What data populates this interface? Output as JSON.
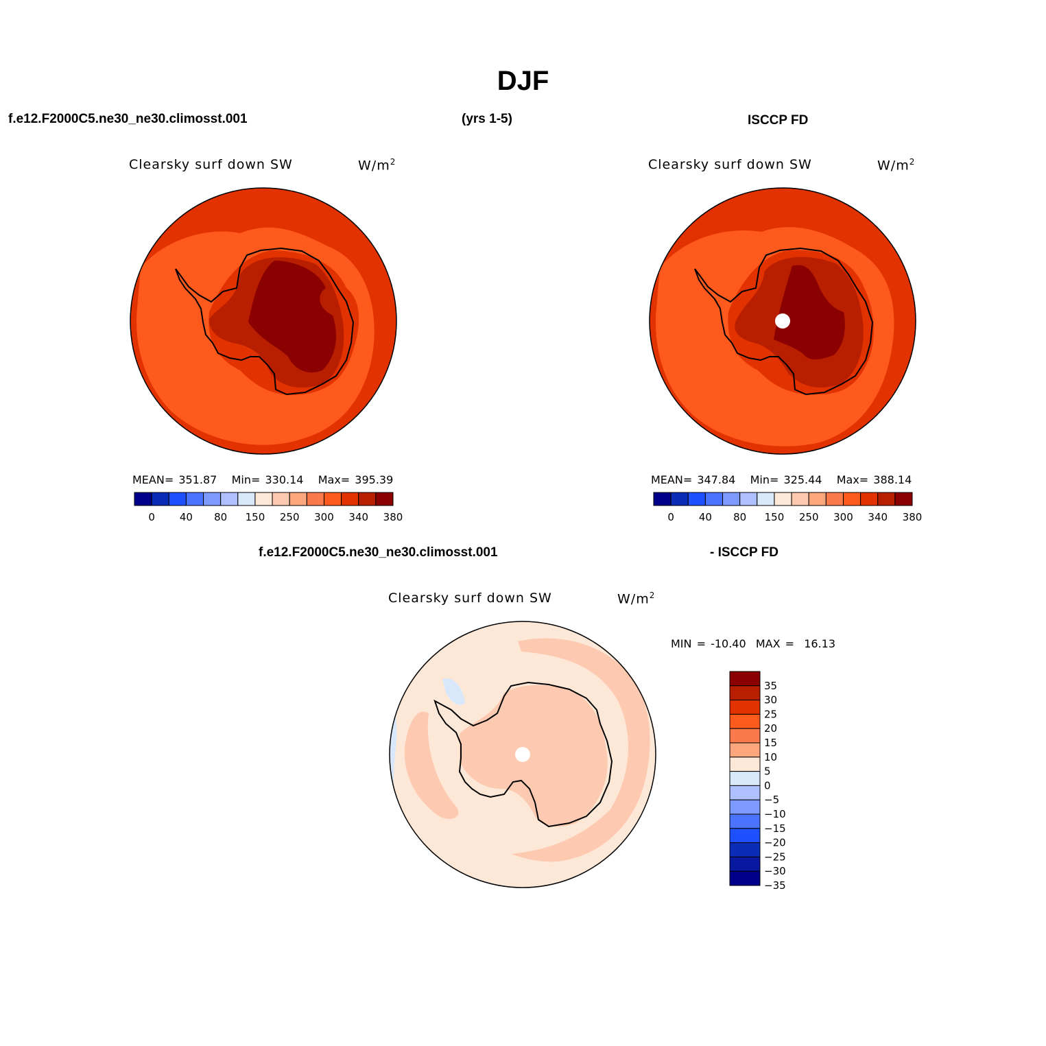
{
  "title": "DJF",
  "headers": {
    "case": "f.e12.F2000C5.ne30_ne30.climosst.001",
    "years": "(yrs 1-5)",
    "obs": "ISCCP FD",
    "diff_case": "f.e12.F2000C5.ne30_ne30.climosst.001",
    "diff_obs": "- ISCCP FD"
  },
  "chart_data": [
    {
      "type": "heatmap",
      "projection": "south polar stereographic",
      "title": "Clearsky surf down SW",
      "units": "W/m",
      "units_sup": "2",
      "stats": {
        "mean_label": "MEAN=",
        "mean": "351.87",
        "min_label": "Min=",
        "min": "330.14",
        "max_label": "Max=",
        "max": "395.39"
      },
      "colorbar": {
        "orientation": "horizontal",
        "tick_labels": [
          "0",
          "40",
          "80",
          "150",
          "250",
          "300",
          "340",
          "380"
        ],
        "colors": [
          "#00008b",
          "#0a2db8",
          "#1e50ff",
          "#4a74ff",
          "#7c9aff",
          "#aec0ff",
          "#d8e8fa",
          "#fde8d8",
          "#fdc9b0",
          "#fca67e",
          "#fa7a4b",
          "#ff5a1e",
          "#e23200",
          "#b81e00",
          "#8b0000"
        ]
      },
      "fields": {
        "ocean_far": "#e23200",
        "ocean_mid": "#ff5a1e",
        "coast": "#e23200",
        "interior": "#b81e00",
        "plateau": "#8b0000"
      }
    },
    {
      "type": "heatmap",
      "projection": "south polar stereographic",
      "title": "Clearsky surf down SW",
      "units": "W/m",
      "units_sup": "2",
      "stats": {
        "mean_label": "MEAN=",
        "mean": "347.84",
        "min_label": "Min=",
        "min": "325.44",
        "max_label": "Max=",
        "max": "388.14"
      },
      "colorbar": {
        "orientation": "horizontal",
        "tick_labels": [
          "0",
          "40",
          "80",
          "150",
          "250",
          "300",
          "340",
          "380"
        ],
        "colors": [
          "#00008b",
          "#0a2db8",
          "#1e50ff",
          "#4a74ff",
          "#7c9aff",
          "#aec0ff",
          "#d8e8fa",
          "#fde8d8",
          "#fdc9b0",
          "#fca67e",
          "#fa7a4b",
          "#ff5a1e",
          "#e23200",
          "#b81e00",
          "#8b0000"
        ]
      },
      "fields": {
        "ocean_far": "#e23200",
        "ocean_mid": "#ff5a1e",
        "coast": "#e23200",
        "interior": "#b81e00",
        "plateau": "#8b0000"
      }
    },
    {
      "type": "heatmap",
      "projection": "south polar stereographic",
      "title": "Clearsky surf down SW",
      "units": "W/m",
      "units_sup": "2",
      "stats": {
        "min_label": "MIN =",
        "min": "-10.40",
        "max_label": "MAX =",
        "max": "16.13"
      },
      "colorbar": {
        "orientation": "vertical",
        "tick_labels": [
          "35",
          "30",
          "25",
          "20",
          "15",
          "10",
          "5",
          "0",
          "-5",
          "-10",
          "-15",
          "-20",
          "-25",
          "-30",
          "-35"
        ],
        "colors": [
          "#8b0000",
          "#b81e00",
          "#e23200",
          "#ff5a1e",
          "#fa7a4b",
          "#fca67e",
          "#fde8d8",
          "#d8e8fa",
          "#aec0ff",
          "#7c9aff",
          "#4a74ff",
          "#1e50ff",
          "#0a2db8",
          "#0818a0",
          "#00008b"
        ]
      },
      "fields": {
        "ocean": "#fde8d8",
        "band": "#fdc9b0",
        "negative": "#d8e8fa"
      }
    }
  ]
}
